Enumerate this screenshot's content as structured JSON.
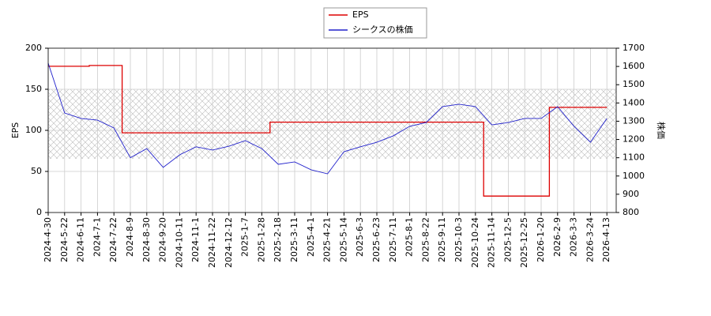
{
  "chart_data": {
    "type": "line",
    "categories": [
      "2024-4-30",
      "2024-5-22",
      "2024-6-11",
      "2024-7-1",
      "2024-7-22",
      "2024-8-9",
      "2024-8-30",
      "2024-9-20",
      "2024-10-11",
      "2024-11-1",
      "2024-11-22",
      "2024-12-12",
      "2025-1-7",
      "2025-1-28",
      "2025-2-18",
      "2025-3-11",
      "2025-4-1",
      "2025-4-21",
      "2025-5-14",
      "2025-6-3",
      "2025-6-23",
      "2025-7-11",
      "2025-8-1",
      "2025-8-22",
      "2025-9-11",
      "2025-10-3",
      "2025-10-24",
      "2025-11-14",
      "2025-12-5",
      "2025-12-25",
      "2026-1-20",
      "2026-2-9",
      "2026-3-3",
      "2026-3-24",
      "2026-4-13"
    ],
    "series": [
      {
        "name": "EPS",
        "color": "#dd0000",
        "step": true,
        "values": [
          178,
          178,
          178,
          179,
          179,
          97,
          97,
          97,
          97,
          97,
          97,
          97,
          97,
          97,
          110,
          110,
          110,
          110,
          110,
          110,
          110,
          110,
          110,
          110,
          110,
          110,
          110,
          20,
          20,
          20,
          20,
          128,
          128,
          128,
          128
        ]
      },
      {
        "name": "シークスの株価",
        "color": "#2222cc",
        "axis": "y2",
        "values": [
          1618,
          1345,
          1315,
          1306,
          1263,
          1100,
          1150,
          1047,
          1116,
          1160,
          1142,
          1163,
          1194,
          1150,
          1064,
          1077,
          1034,
          1012,
          1133,
          1160,
          1185,
          1220,
          1272,
          1293,
          1380,
          1393,
          1380,
          1280,
          1293,
          1315,
          1315,
          1380,
          1272,
          1185,
          1315
        ]
      }
    ],
    "ylabel": "EPS",
    "y2label": "株価",
    "ylim": [
      0,
      200
    ],
    "yticks": [
      0,
      50,
      100,
      150,
      200
    ],
    "y2lim": [
      800,
      1700
    ],
    "y2ticks": [
      800,
      900,
      1000,
      1100,
      1200,
      1300,
      1400,
      1500,
      1600,
      1700
    ],
    "grid": true,
    "legend": "top"
  }
}
